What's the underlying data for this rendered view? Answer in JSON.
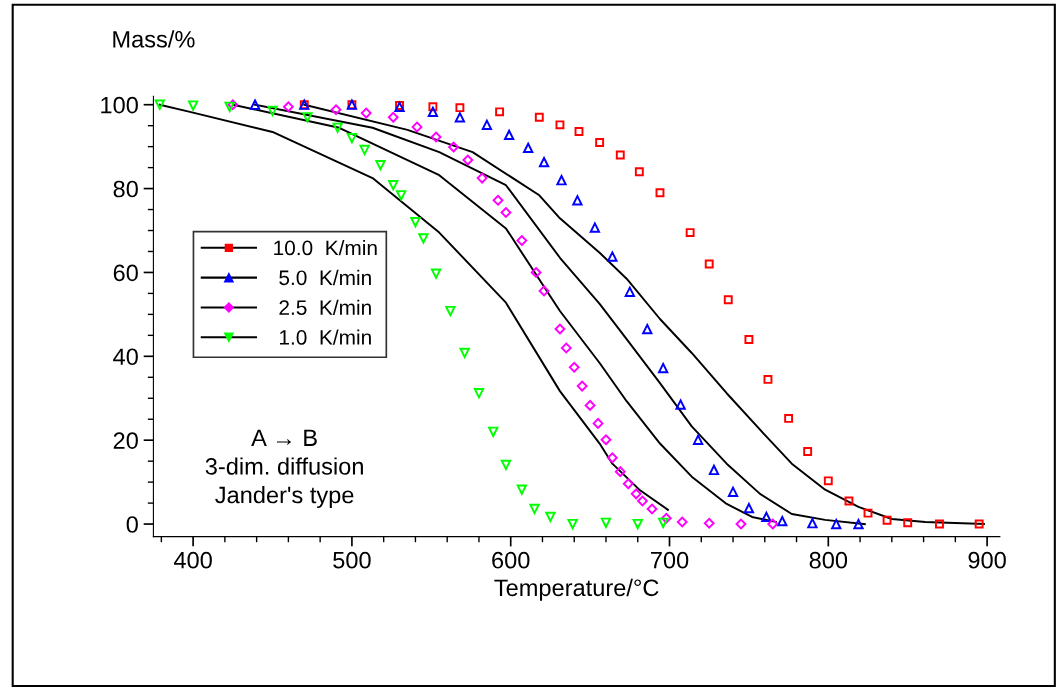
{
  "chart_data": {
    "type": "scatter",
    "xlabel": "Temperature/°C",
    "ylabel": "Mass/%",
    "xlim": [
      375,
      908
    ],
    "ylim": [
      -3,
      102
    ],
    "xticks": [
      {
        "value": 380,
        "label": null
      },
      400,
      {
        "value": 420,
        "label": null
      },
      {
        "value": 440,
        "label": null
      },
      {
        "value": 460,
        "label": null
      },
      {
        "value": 480,
        "label": null
      },
      500,
      {
        "value": 520,
        "label": null
      },
      {
        "value": 540,
        "label": null
      },
      {
        "value": 560,
        "label": null
      },
      {
        "value": 580,
        "label": null
      },
      600,
      {
        "value": 620,
        "label": null
      },
      {
        "value": 640,
        "label": null
      },
      {
        "value": 660,
        "label": null
      },
      {
        "value": 680,
        "label": null
      },
      700,
      {
        "value": 720,
        "label": null
      },
      {
        "value": 740,
        "label": null
      },
      {
        "value": 760,
        "label": null
      },
      {
        "value": 780,
        "label": null
      },
      800,
      {
        "value": 820,
        "label": null
      },
      {
        "value": 840,
        "label": null
      },
      {
        "value": 860,
        "label": null
      },
      {
        "value": 880,
        "label": null
      },
      900
    ],
    "yticks": [
      0,
      {
        "value": 5,
        "label": null
      },
      {
        "value": 10,
        "label": null
      },
      {
        "value": 15,
        "label": null
      },
      20,
      {
        "value": 25,
        "label": null
      },
      {
        "value": 30,
        "label": null
      },
      {
        "value": 35,
        "label": null
      },
      40,
      {
        "value": 45,
        "label": null
      },
      {
        "value": 50,
        "label": null
      },
      {
        "value": 55,
        "label": null
      },
      60,
      {
        "value": 65,
        "label": null
      },
      {
        "value": 70,
        "label": null
      },
      {
        "value": 75,
        "label": null
      },
      80,
      {
        "value": 85,
        "label": null
      },
      {
        "value": 90,
        "label": null
      },
      {
        "value": 95,
        "label": null
      },
      100
    ],
    "grid": false,
    "legend": "left",
    "annotations": [
      "A → B",
      "3-dim. diffusion",
      "Jander's type"
    ],
    "series": [
      {
        "type": "line",
        "color": "#000000",
        "marker": "none",
        "x": [
          379,
          398,
          450,
          513,
          555,
          597,
          631,
          656,
          664,
          681,
          699
        ],
        "values": [
          100,
          98.3,
          93.5,
          82.5,
          69.5,
          52.8,
          31.7,
          19.2,
          14.4,
          8.2,
          3.4
        ]
      },
      {
        "type": "line",
        "color": "#000000",
        "marker": "none",
        "x": [
          425,
          492,
          555,
          597,
          631,
          656,
          673,
          694,
          714,
          736,
          752,
          767
        ],
        "values": [
          100,
          94.5,
          83.2,
          70.5,
          50.8,
          38.4,
          29.3,
          19.2,
          11.3,
          4.8,
          1.7,
          0.5
        ]
      },
      {
        "type": "line",
        "color": "#000000",
        "marker": "none",
        "x": [
          439,
          513,
          555,
          597,
          631,
          656,
          673,
          694,
          714,
          736,
          757,
          777,
          798,
          823
        ],
        "values": [
          100,
          94.5,
          88.7,
          80.8,
          63.5,
          52.5,
          44.1,
          33.6,
          23.3,
          14.4,
          7.2,
          2.4,
          1,
          0
        ]
      },
      {
        "type": "line",
        "color": "#000000",
        "marker": "none",
        "x": [
          470,
          535,
          576,
          618,
          631,
          656,
          673,
          694,
          714,
          736,
          757,
          777,
          798,
          819,
          840,
          861,
          898
        ],
        "values": [
          100,
          94,
          88.7,
          78.4,
          72.9,
          64.7,
          58.5,
          48.9,
          40.8,
          31.2,
          22.5,
          14.4,
          8.2,
          4.1,
          1.2,
          0.5,
          0
        ]
      },
      {
        "name": "10.0  K/min",
        "color": "#ff0000",
        "marker": "square",
        "x": [
          470,
          500,
          530,
          551,
          568,
          593,
          618,
          631,
          643,
          656,
          669,
          681,
          694,
          713,
          725,
          737,
          750,
          762,
          775,
          787,
          800,
          813,
          825,
          837,
          850,
          870,
          895
        ],
        "values": [
          100,
          100,
          99.8,
          99.5,
          99.3,
          98.3,
          97,
          95.2,
          93.6,
          91,
          88,
          84,
          79,
          69.5,
          62,
          53.5,
          44,
          34.5,
          25.2,
          17.3,
          10.3,
          5.5,
          2.6,
          0.9,
          0.3,
          0,
          0
        ]
      },
      {
        "name": " 5.0  K/min",
        "color": "#0000ff",
        "marker": "triangle",
        "x": [
          439,
          470,
          500,
          530,
          551,
          568,
          585,
          599,
          611,
          621,
          632,
          642,
          653,
          664,
          675,
          686,
          696,
          707,
          718,
          728,
          740,
          750,
          761,
          771,
          790,
          805,
          819
        ],
        "values": [
          100,
          100,
          100,
          99.5,
          98.3,
          97,
          95.2,
          92.8,
          89.7,
          86.3,
          82,
          77.2,
          70.7,
          63.8,
          55.4,
          46.5,
          37.2,
          28.5,
          20.1,
          12.9,
          7.7,
          3.8,
          1.7,
          0.7,
          0.2,
          0,
          0
        ]
      },
      {
        "name": " 2.5  K/min",
        "color": "#ff00ff",
        "marker": "diamond",
        "x": [
          425,
          460,
          490,
          509,
          526,
          541,
          553,
          564,
          573,
          582,
          592,
          597,
          607,
          616,
          621,
          631,
          635,
          640,
          645,
          650,
          655,
          660,
          664,
          669,
          674,
          679,
          683,
          689,
          698,
          708,
          725,
          745,
          765
        ],
        "values": [
          100,
          99.5,
          98.8,
          98,
          97,
          94.7,
          92.3,
          89.9,
          86.8,
          82.5,
          77.2,
          74.3,
          67.6,
          60,
          55.6,
          46.5,
          42,
          37.4,
          32.9,
          28.3,
          24,
          20.1,
          15.8,
          12.5,
          9.6,
          7.2,
          5.5,
          3.6,
          1.4,
          0.5,
          0.2,
          0,
          0
        ]
      },
      {
        "name": " 1.0  K/min",
        "color": "#00ff00",
        "marker": "triangle_down",
        "x": [
          379,
          400,
          423,
          450,
          472,
          491,
          500,
          508,
          518,
          526,
          531,
          540,
          545,
          553,
          562,
          571,
          580,
          589,
          597,
          607,
          615,
          625,
          639,
          660,
          680,
          696
        ],
        "values": [
          100,
          99.8,
          99.5,
          98.5,
          97,
          94.5,
          92,
          89.2,
          85.6,
          80.8,
          78.4,
          72,
          68.1,
          59.7,
          50.8,
          40.8,
          31.2,
          22,
          14.1,
          8.2,
          3.6,
          1.7,
          0,
          0.3,
          0,
          0.3
        ]
      }
    ]
  }
}
